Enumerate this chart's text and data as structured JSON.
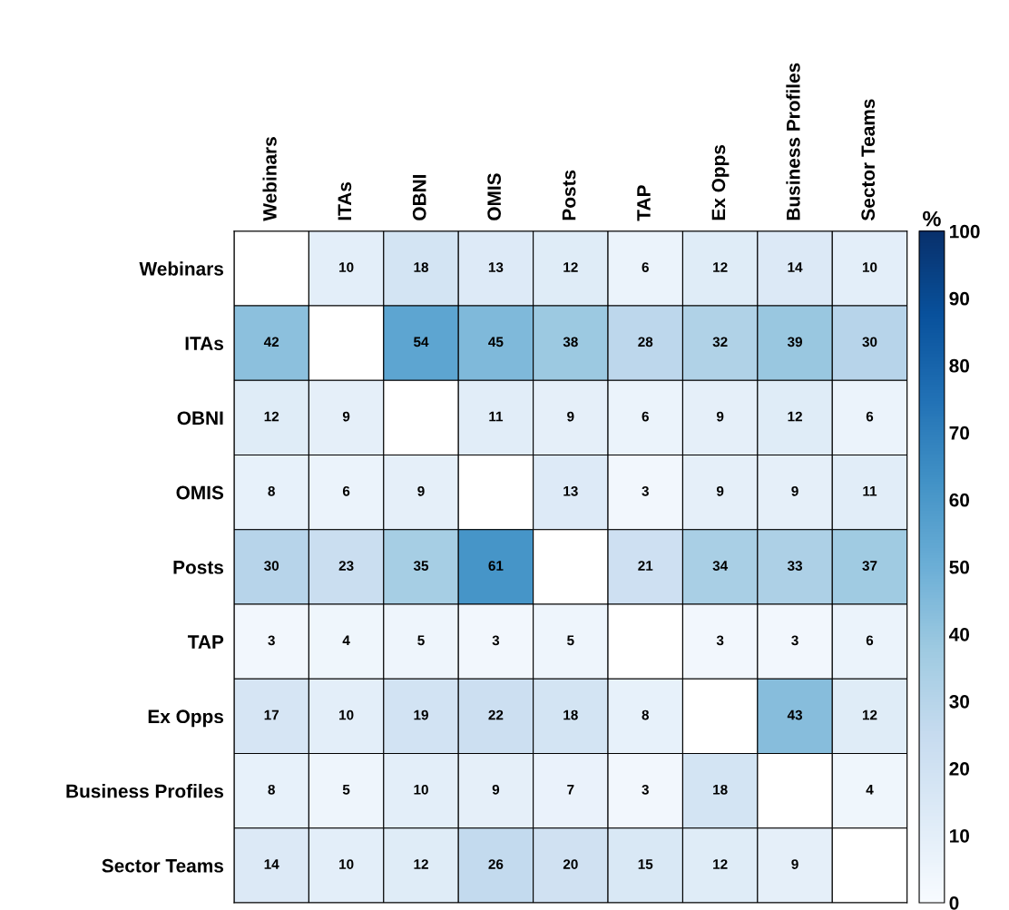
{
  "chart_data": {
    "type": "heatmap",
    "clabel": "%",
    "categories": [
      "Webinars",
      "ITAs",
      "OBNI",
      "OMIS",
      "Posts",
      "TAP",
      "Ex Opps",
      "Business Profiles",
      "Sector Teams"
    ],
    "y_categories": [
      "Webinars",
      "ITAs",
      "OBNI",
      "OMIS",
      "Posts",
      "TAP",
      "Ex Opps",
      "Business Profiles",
      "Sector Teams"
    ],
    "cells": [
      [
        null,
        10,
        18,
        13,
        12,
        6,
        12,
        14,
        10
      ],
      [
        42,
        null,
        54,
        45,
        38,
        28,
        32,
        39,
        30
      ],
      [
        12,
        9,
        null,
        11,
        9,
        6,
        9,
        12,
        6
      ],
      [
        8,
        6,
        9,
        null,
        13,
        3,
        9,
        9,
        11
      ],
      [
        30,
        23,
        35,
        61,
        null,
        21,
        34,
        33,
        37
      ],
      [
        3,
        4,
        5,
        3,
        5,
        null,
        3,
        3,
        6
      ],
      [
        17,
        10,
        19,
        22,
        18,
        8,
        null,
        43,
        12
      ],
      [
        8,
        5,
        10,
        9,
        7,
        3,
        18,
        null,
        4
      ],
      [
        14,
        10,
        12,
        26,
        20,
        15,
        12,
        9,
        null
      ]
    ],
    "clim": [
      0,
      100
    ],
    "cticks": [
      0,
      10,
      20,
      30,
      40,
      50,
      60,
      70,
      80,
      90,
      100
    ],
    "data_labels": true
  }
}
